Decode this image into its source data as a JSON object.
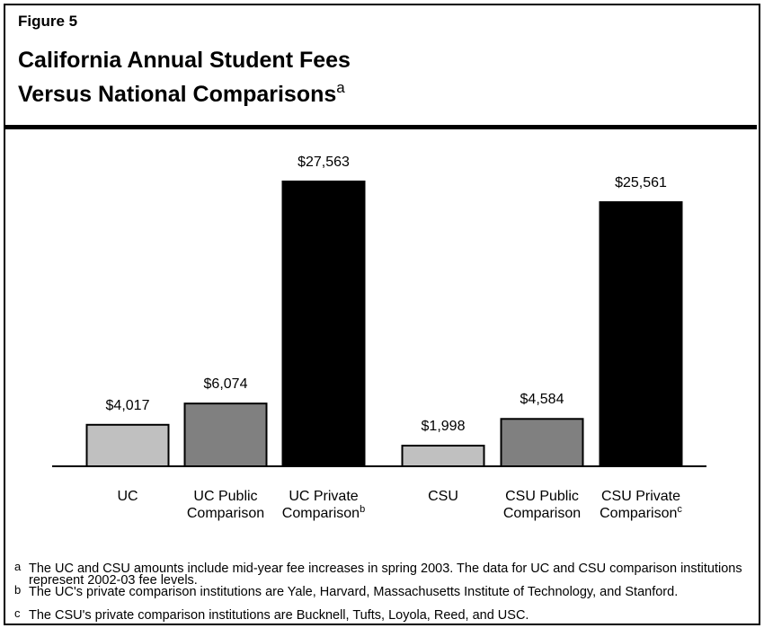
{
  "header": "Figure 5",
  "chart_data": {
    "type": "bar",
    "title_lines": [
      "California Annual Student Fees",
      "Versus National Comparisons"
    ],
    "title_note": "a",
    "categories": [
      "UC",
      "UC Public Comparison",
      "UC Private Comparison",
      "CSU",
      "CSU Public Comparison",
      "CSU Private Comparison"
    ],
    "category_notes": [
      null,
      null,
      "b",
      null,
      null,
      "c"
    ],
    "values": [
      4017,
      6074,
      27563,
      1998,
      4584,
      25561
    ],
    "value_labels": [
      "$4,017",
      "$6,074",
      "$27,563",
      "$1,998",
      "$4,584",
      "$25,561"
    ],
    "colors": [
      "#c0c0c0",
      "#808080",
      "#000000",
      "#c0c0c0",
      "#808080",
      "#000000"
    ]
  },
  "footnotes": [
    {
      "marker": "a",
      "text": "The UC and CSU amounts include mid-year fee increases in spring 2003. The data for UC and CSU comparison institutions represent 2002-03 fee levels."
    },
    {
      "marker": "b",
      "text": "The UC's private comparison institutions are Yale, Harvard, Massachusetts Institute of Technology, and Stanford."
    },
    {
      "marker": "c",
      "text": "The CSU's private comparison institutions are Bucknell, Tufts, Loyola, Reed, and USC."
    }
  ]
}
